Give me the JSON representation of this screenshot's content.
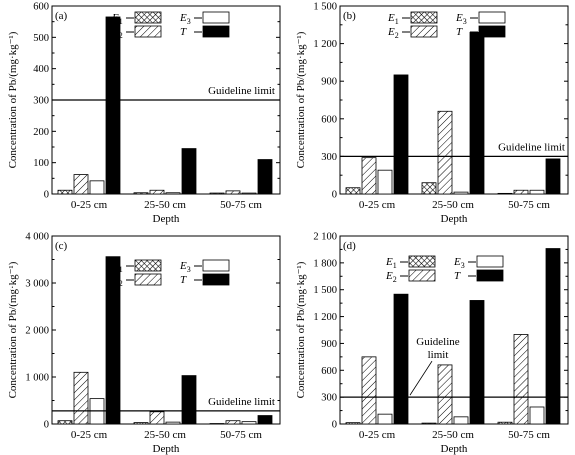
{
  "figure": {
    "xlabel": "Depth",
    "ylabel": "Concentration of Pb/(mg·kg⁻¹)",
    "legend_entries": [
      {
        "base": "E",
        "sub": "1",
        "pattern": "cross"
      },
      {
        "base": "E",
        "sub": "2",
        "pattern": "diag"
      },
      {
        "base": "E",
        "sub": "3",
        "pattern": "white"
      },
      {
        "base": "T",
        "sub": "",
        "pattern": "black"
      }
    ]
  },
  "chart_data": [
    {
      "panel": "(a)",
      "type": "bar",
      "categories": [
        "0-25 cm",
        "25-50 cm",
        "50-75 cm"
      ],
      "series": [
        {
          "name": "E1",
          "values": [
            12,
            4,
            3
          ]
        },
        {
          "name": "E2",
          "values": [
            62,
            12,
            10
          ]
        },
        {
          "name": "E3",
          "values": [
            42,
            4,
            3
          ]
        },
        {
          "name": "T",
          "values": [
            565,
            145,
            110
          ]
        }
      ],
      "ylim": [
        0,
        600
      ],
      "yticks": [
        0,
        100,
        200,
        300,
        400,
        500,
        600
      ],
      "ytick_labels": [
        "0",
        "100",
        "200",
        "300",
        "400",
        "500",
        "600"
      ],
      "guideline": 300,
      "guideline_label": "Guideline limit",
      "legend_position": "top-right"
    },
    {
      "panel": "(b)",
      "type": "bar",
      "categories": [
        "0-25 cm",
        "25-50 cm",
        "50-75 cm"
      ],
      "series": [
        {
          "name": "E1",
          "values": [
            50,
            90,
            5
          ]
        },
        {
          "name": "E2",
          "values": [
            290,
            660,
            30
          ]
        },
        {
          "name": "E3",
          "values": [
            190,
            15,
            30
          ]
        },
        {
          "name": "T",
          "values": [
            950,
            1290,
            280
          ]
        }
      ],
      "ylim": [
        0,
        1500
      ],
      "yticks": [
        0,
        300,
        600,
        900,
        1200,
        1500
      ],
      "ytick_labels": [
        "0",
        "300",
        "600",
        "900",
        "1 200",
        "1 500"
      ],
      "guideline": 300,
      "guideline_label": "Guideline limit",
      "legend_position": "top-right"
    },
    {
      "panel": "(c)",
      "type": "bar",
      "categories": [
        "0-25 cm",
        "25-50 cm",
        "50-75 cm"
      ],
      "series": [
        {
          "name": "E1",
          "values": [
            70,
            30,
            10
          ]
        },
        {
          "name": "E2",
          "values": [
            1100,
            260,
            70
          ]
        },
        {
          "name": "E3",
          "values": [
            540,
            40,
            50
          ]
        },
        {
          "name": "T",
          "values": [
            3560,
            1030,
            180
          ]
        }
      ],
      "ylim": [
        0,
        4000
      ],
      "yticks": [
        0,
        1000,
        2000,
        3000,
        4000
      ],
      "ytick_labels": [
        "0",
        "1 000",
        "2 000",
        "3 000",
        "4 000"
      ],
      "guideline": 280,
      "guideline_label": "Guideline limit",
      "legend_position": "top-right"
    },
    {
      "panel": "(d)",
      "type": "bar",
      "categories": [
        "0-25 cm",
        "25-50 cm",
        "50-75 cm"
      ],
      "series": [
        {
          "name": "E1",
          "values": [
            15,
            10,
            20
          ]
        },
        {
          "name": "E2",
          "values": [
            750,
            660,
            1000
          ]
        },
        {
          "name": "E3",
          "values": [
            110,
            80,
            190
          ]
        },
        {
          "name": "T",
          "values": [
            1450,
            1380,
            1960
          ]
        }
      ],
      "ylim": [
        0,
        2100
      ],
      "yticks": [
        0,
        300,
        600,
        900,
        1200,
        1500,
        1800,
        2100
      ],
      "ytick_labels": [
        "0",
        "300",
        "600",
        "900",
        "1 200",
        "1 500",
        "1 800",
        "2 100"
      ],
      "guideline": 300,
      "guideline_label": "Guideline\nlimit",
      "legend_position": "top-left"
    }
  ]
}
